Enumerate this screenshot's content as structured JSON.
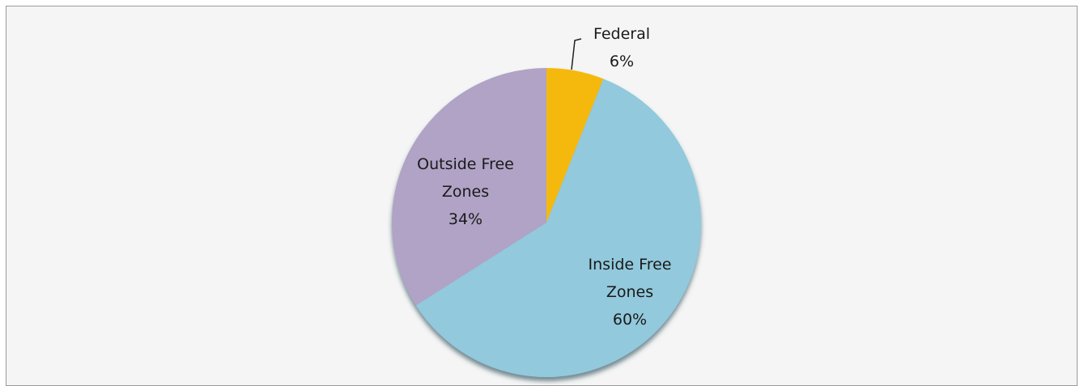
{
  "chart_data": {
    "type": "pie",
    "categories": [
      "Federal",
      "Inside Free Zones",
      "Outside Free Zones"
    ],
    "values": [
      6,
      60,
      34
    ],
    "value_labels": [
      "6%",
      "60%",
      "34%"
    ],
    "colors": [
      "#f5b90c",
      "#92c9dc",
      "#b0a3c6"
    ]
  }
}
